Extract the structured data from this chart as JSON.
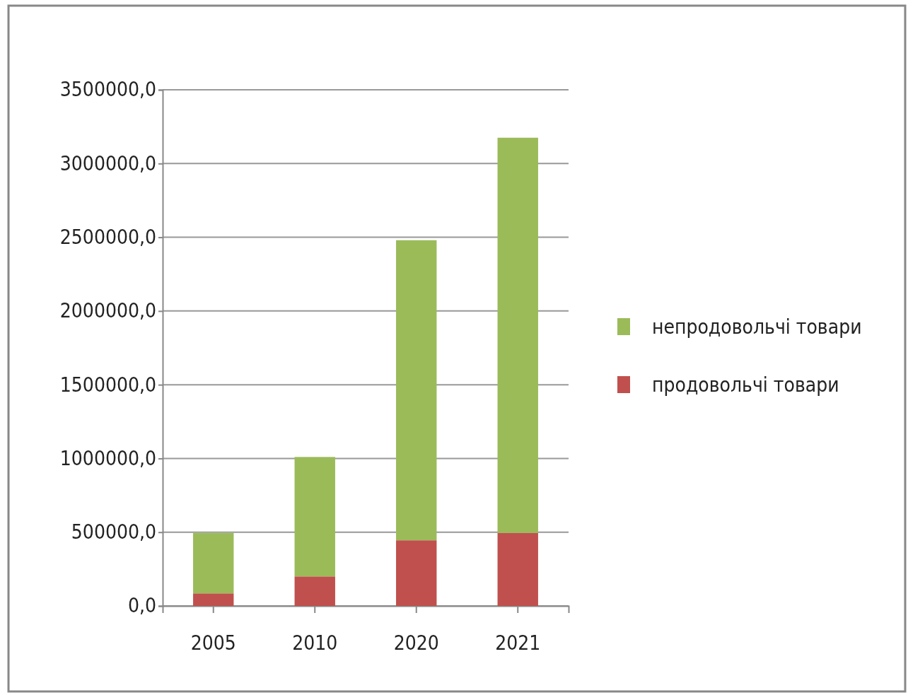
{
  "chart_data": {
    "type": "bar",
    "stacked": true,
    "categories": [
      "2005",
      "2010",
      "2020",
      "2021"
    ],
    "series": [
      {
        "name": "продовольчі товари",
        "color": "#c0504d",
        "values": [
          85000,
          200000,
          445000,
          495000
        ]
      },
      {
        "name": "непродовольчі товари",
        "color": "#9bbb59",
        "values": [
          410000,
          810000,
          2035000,
          2680000
        ]
      }
    ],
    "ylim": [
      0,
      3500000
    ],
    "yticks": [
      {
        "value": 0,
        "label": "0,0"
      },
      {
        "value": 500000,
        "label": "500000,0"
      },
      {
        "value": 1000000,
        "label": "1000000,0"
      },
      {
        "value": 1500000,
        "label": "1500000,0"
      },
      {
        "value": 2000000,
        "label": "2000000,0"
      },
      {
        "value": 2500000,
        "label": "2500000,0"
      },
      {
        "value": 3000000,
        "label": "3000000,0"
      },
      {
        "value": 3500000,
        "label": "3500000,0"
      }
    ],
    "grid": "y",
    "legend": "right"
  }
}
